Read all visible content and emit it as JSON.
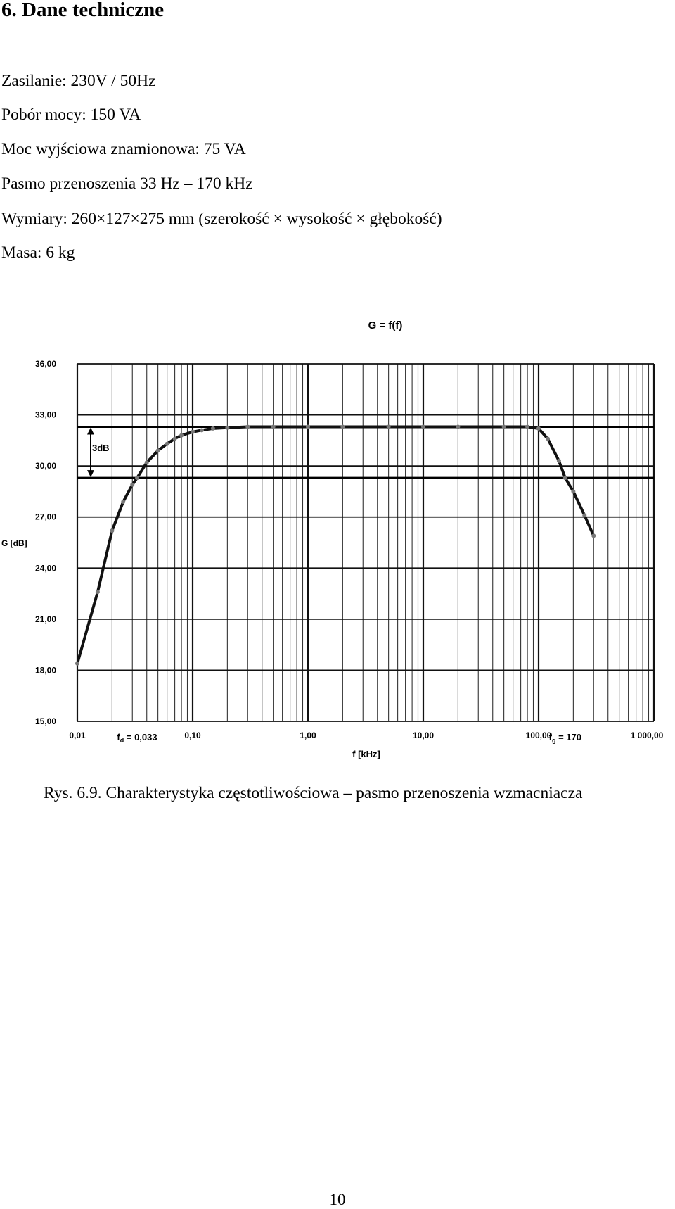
{
  "section": {
    "title": "6. Dane techniczne"
  },
  "specs": [
    "Zasilanie: 230V / 50Hz",
    "Pobór mocy: 150 VA",
    "Moc wyjściowa znamionowa: 75 VA",
    "Pasmo przenoszenia 33 Hz – 170 kHz",
    "Wymiary: 260×127×275 mm (szerokość × wysokość × głębokość)",
    "Masa: 6 kg"
  ],
  "chart_data": {
    "type": "line",
    "title": "G = f(f)",
    "xlabel": "f [kHz]",
    "ylabel": "G [dB]",
    "x_scale": "log",
    "xlim": [
      0.01,
      1000
    ],
    "ylim": [
      15,
      36
    ],
    "x_ticks": [
      "0,01",
      "0,10",
      "1,00",
      "10,00",
      "100,00",
      "1 000,00"
    ],
    "x_tick_values": [
      0.01,
      0.1,
      1,
      10,
      100,
      1000
    ],
    "y_ticks": [
      "15,00",
      "18,00",
      "21,00",
      "24,00",
      "27,00",
      "30,00",
      "33,00",
      "36,00"
    ],
    "y_tick_values": [
      15,
      18,
      21,
      24,
      27,
      30,
      33,
      36
    ],
    "grid": true,
    "markers": [
      {
        "label_main": "f",
        "label_sub": "d",
        "label_rest": " = 0,033",
        "x": 0.033
      },
      {
        "label_main": "f",
        "label_sub": "g",
        "label_rest": " = 170",
        "x": 170
      }
    ],
    "annotation": {
      "label": "3dB",
      "y_top": 32.3,
      "y_bottom": 29.3
    },
    "series": [
      {
        "x": [
          0.01,
          0.015,
          0.02,
          0.025,
          0.03,
          0.033,
          0.04,
          0.05,
          0.06,
          0.07,
          0.08,
          0.1,
          0.12,
          0.15,
          0.2,
          0.3,
          0.5,
          1,
          2,
          5,
          10,
          20,
          50,
          80,
          100,
          120,
          150,
          170,
          200,
          250,
          300
        ],
        "y": [
          18.4,
          22.6,
          26.2,
          27.9,
          28.9,
          29.3,
          30.2,
          30.9,
          31.3,
          31.6,
          31.8,
          32.0,
          32.1,
          32.2,
          32.25,
          32.3,
          32.3,
          32.3,
          32.3,
          32.3,
          32.3,
          32.3,
          32.3,
          32.3,
          32.2,
          31.6,
          30.3,
          29.3,
          28.5,
          27.1,
          25.9
        ]
      }
    ]
  },
  "figure": {
    "caption": "Rys. 6.9. Charakterystyka częstotliwościowa  –  pasmo przenoszenia wzmacniacza"
  },
  "page": {
    "number": "10"
  }
}
